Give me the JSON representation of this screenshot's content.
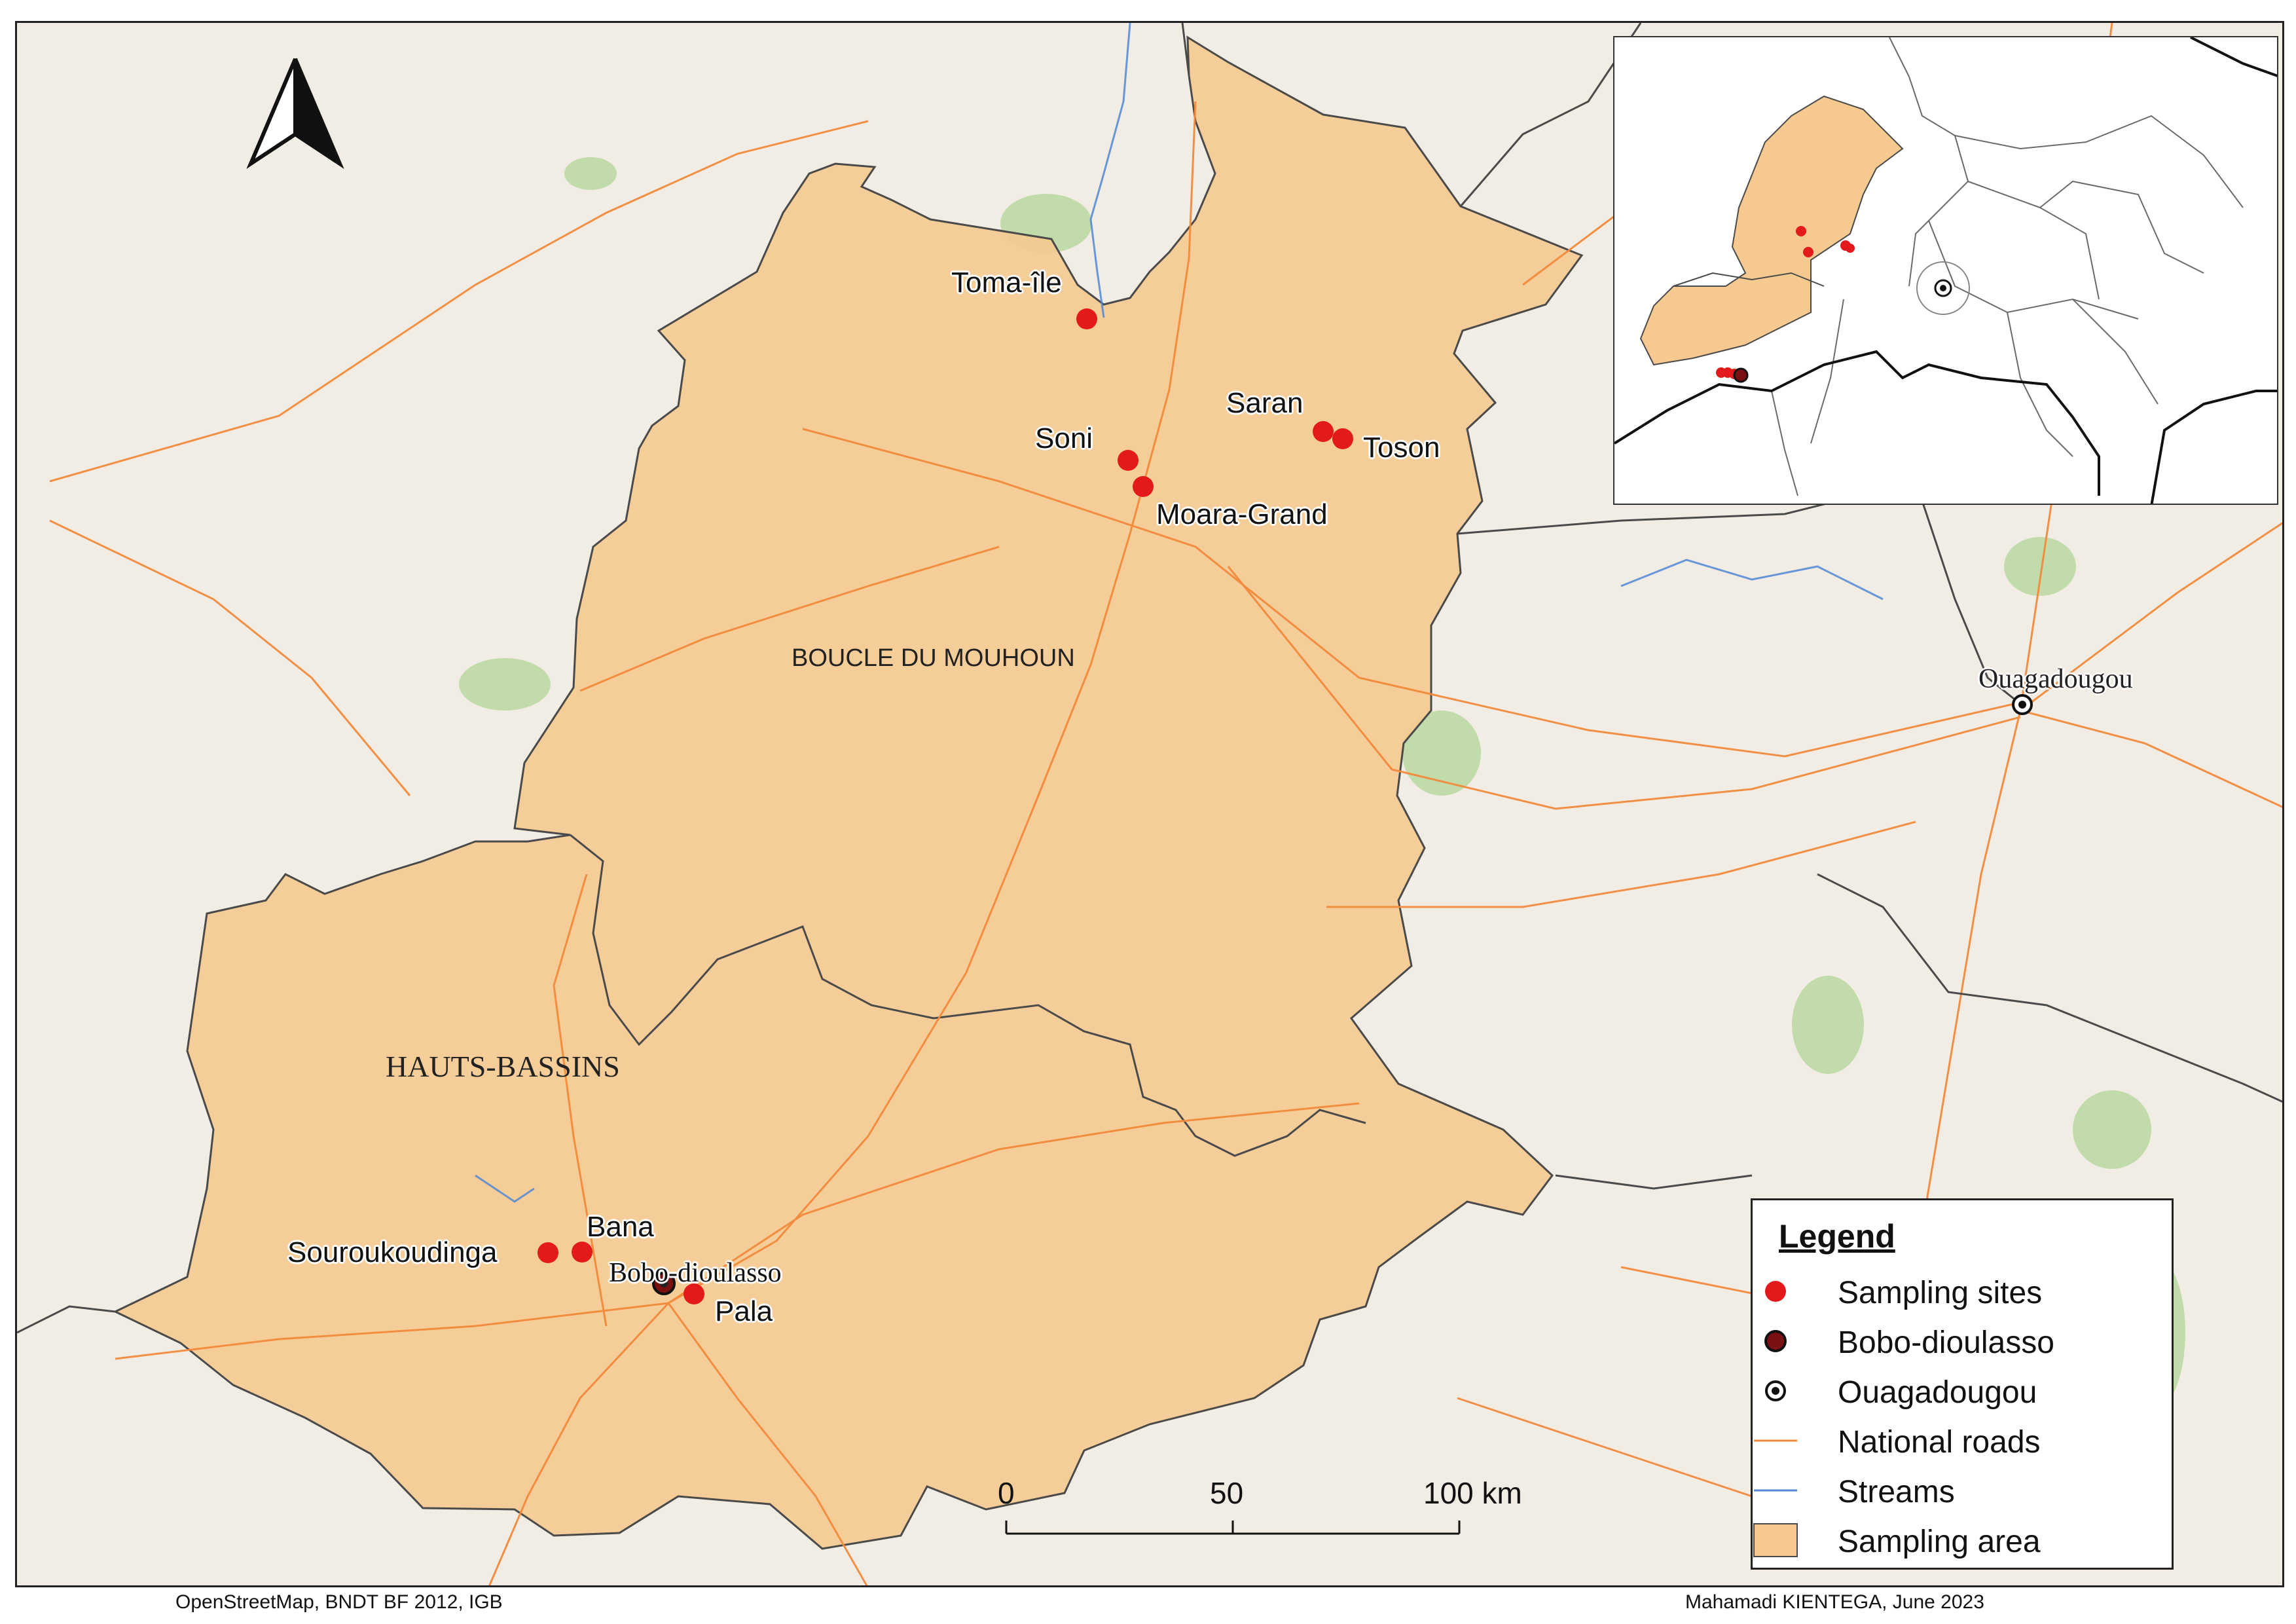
{
  "map": {
    "regions": {
      "boucle": "BOUCLE DU MOUHOUN",
      "hauts": "HAUTS-BASSINS"
    },
    "sites": [
      "Toma-île",
      "Soni",
      "Saran",
      "Toson",
      "Moara-Grand",
      "Souroukoudinga",
      "Bana",
      "Pala"
    ],
    "cities": {
      "bobo": "Bobo-dioulasso",
      "ouaga": "Ouagadougou"
    }
  },
  "scale_bar": {
    "ticks": [
      "0",
      "50",
      "100 km"
    ]
  },
  "legend": {
    "title": "Legend",
    "items": [
      {
        "label": "Sampling sites",
        "symbol": "red-dot",
        "color": "#e31a1c"
      },
      {
        "label": "Bobo-dioulasso",
        "symbol": "dark-red-dot",
        "color": "#7a1010"
      },
      {
        "label": "Ouagadougou",
        "symbol": "bullseye",
        "color": "#000000"
      },
      {
        "label": "National roads",
        "symbol": "line",
        "color": "#f28a3c"
      },
      {
        "label": "Streams",
        "symbol": "line",
        "color": "#4f87d6"
      },
      {
        "label": "Sampling area",
        "symbol": "fill",
        "color": "#f5c98f"
      }
    ]
  },
  "credits": {
    "left": "OpenStreetMap, BNDT BF 2012, IGB",
    "right": "Mahamadi KIENTEGA, June 2023"
  }
}
